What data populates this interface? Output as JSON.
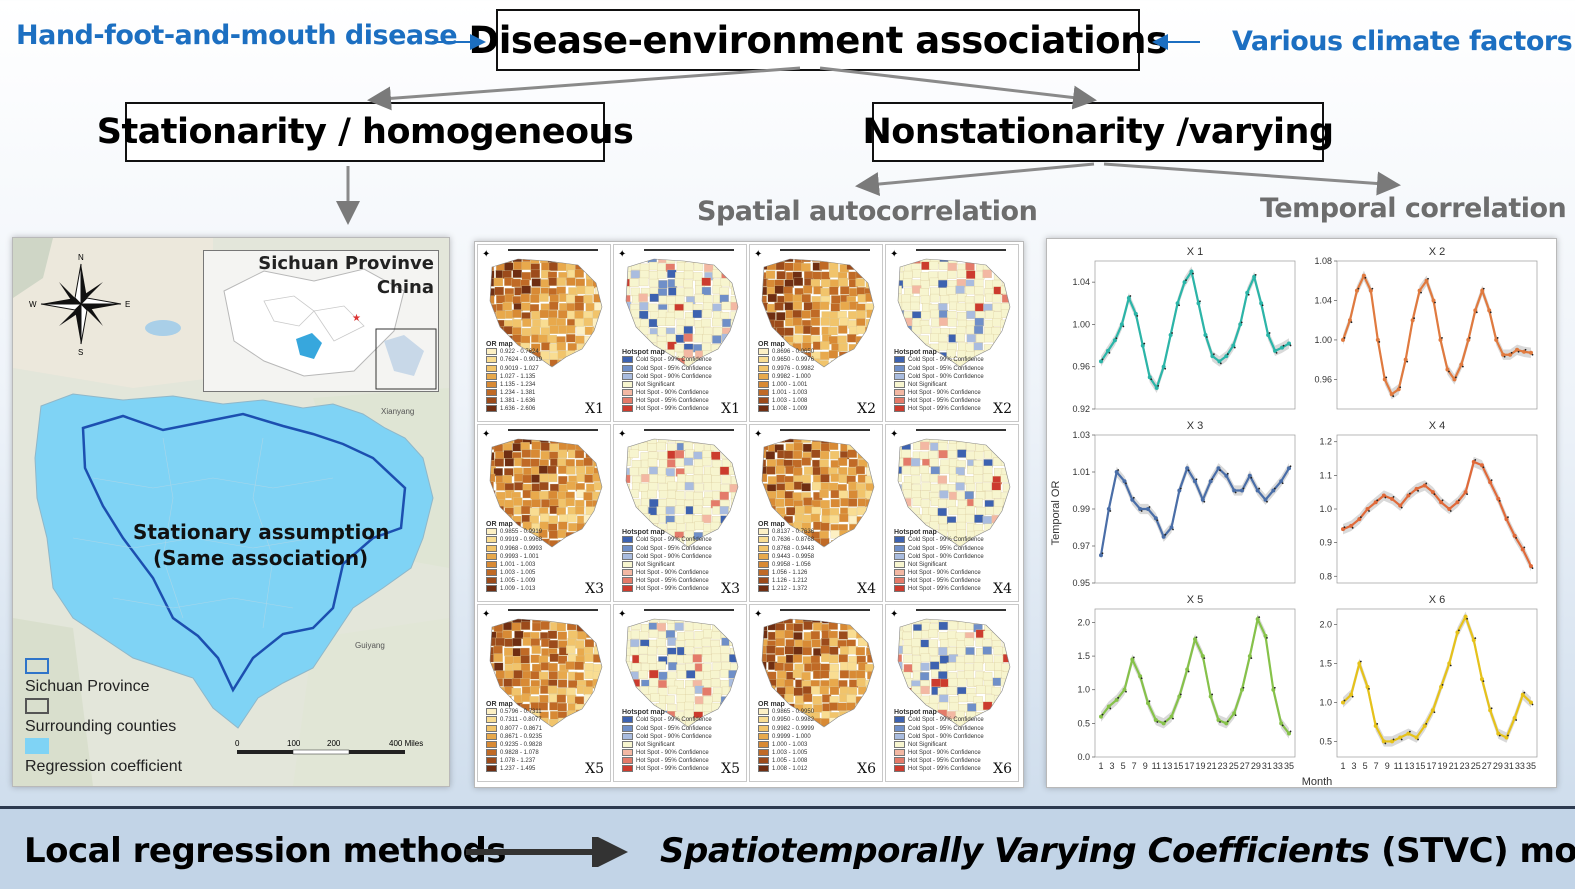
{
  "top": {
    "left_label": "Hand-foot-and-mouth disease",
    "center_title": "Disease-environment associations",
    "right_label": "Various climate factors"
  },
  "branches": {
    "left": "Stationarity / homogeneous",
    "right": "Nonstationarity /varying",
    "spatial": "Spatial autocorrelation",
    "temporal": "Temporal correlation"
  },
  "map_panel": {
    "inset_title_1": "Sichuan Provinve",
    "inset_title_2": "China",
    "compass": {
      "n": "N",
      "s": "S",
      "e": "E",
      "w": "W"
    },
    "assumption_1": "Stationary assumption",
    "assumption_2": "(Same association)",
    "city_1": "Xianyang",
    "city_2": "Guiyang",
    "legend": [
      "Sichuan Province",
      "Surrounding counties",
      "Regression coefficient"
    ],
    "scale": [
      "0",
      "100",
      "200",
      "400 Miles"
    ],
    "colors": {
      "province": "#2f74c9",
      "surrounding": "#555555",
      "coefficient": "#7fd3f5"
    }
  },
  "map_grid": {
    "or_title": "OR map",
    "hot_title": "Hotspot map",
    "hot_legend": [
      "Cold Spot - 99% Confidence",
      "Cold Spot - 95% Confidence",
      "Cold Spot - 90% Confidence",
      "Not Significant",
      "Hot Spot - 90% Confidence",
      "Hot Spot - 95% Confidence",
      "Hot Spot - 99% Confidence"
    ],
    "cells": [
      {
        "label": "X1",
        "or_legend": [
          "0.922 - 0.7624",
          "0.7624 - 0.9019",
          "0.9019 - 1.027",
          "1.027 - 1.135",
          "1.135 - 1.234",
          "1.234 - 1.381",
          "1.381 - 1.636",
          "1.636 - 2.606"
        ]
      },
      {
        "label": "X2",
        "or_legend": [
          "0.8696 - 0.9650",
          "0.9650 - 0.9976",
          "0.9976 - 0.9982",
          "0.9982 - 1.000",
          "1.000 - 1.001",
          "1.001 - 1.003",
          "1.003 - 1.008",
          "1.008 - 1.009"
        ]
      },
      {
        "label": "X3",
        "or_legend": [
          "0.9855 - 0.9919",
          "0.9919 - 0.9968",
          "0.9968 - 0.9993",
          "0.9993 - 1.001",
          "1.001 - 1.003",
          "1.003 - 1.005",
          "1.005 - 1.009",
          "1.009 - 1.013"
        ]
      },
      {
        "label": "X4",
        "or_legend": [
          "0.8137 - 0.7636",
          "0.7636 - 0.8768",
          "0.8768 - 0.9443",
          "0.9443 - 0.9958",
          "0.9958 - 1.056",
          "1.056 - 1.126",
          "1.126 - 1.212",
          "1.212 - 1.372"
        ]
      },
      {
        "label": "X5",
        "or_legend": [
          "0.5796 - 0.7311",
          "0.7311 - 0.8077",
          "0.8077 - 0.8671",
          "0.8671 - 0.9235",
          "0.9235 - 0.9828",
          "0.9828 - 1.078",
          "1.078 - 1.237",
          "1.237 - 1.495"
        ]
      },
      {
        "label": "X6",
        "or_legend": [
          "0.9865 - 0.9950",
          "0.9950 - 0.9982",
          "0.9982 - 0.9999",
          "0.9999 - 1.000",
          "1.000 - 1.003",
          "1.003 - 1.005",
          "1.005 - 1.008",
          "1.008 - 1.012"
        ]
      }
    ]
  },
  "chart_data": {
    "type": "line",
    "ylabel": "Temporal OR",
    "xlabel": "Month",
    "x_ticks": [
      "1",
      "3",
      "5",
      "7",
      "9",
      "11",
      "13",
      "15",
      "17",
      "19",
      "21",
      "23",
      "25",
      "27",
      "29",
      "31",
      "33",
      "35"
    ],
    "panels": [
      {
        "name": "X 1",
        "color": "#2bb5a8",
        "ylim": [
          0.92,
          1.06
        ],
        "y_ticks": [
          "0.92",
          "0.96",
          "1.00",
          "1.04"
        ],
        "y_tick_values": [
          0.92,
          0.96,
          1.0,
          1.04
        ],
        "values": [
          0.965,
          0.975,
          0.985,
          1.0,
          1.025,
          1.01,
          0.98,
          0.95,
          0.94,
          0.96,
          0.99,
          1.02,
          1.04,
          1.05,
          1.02,
          0.99,
          0.97,
          0.965,
          0.97,
          0.98,
          1.0,
          1.03,
          1.045,
          1.02,
          0.99,
          0.975,
          0.978,
          0.982
        ]
      },
      {
        "name": "X 2",
        "color": "#e07a3f",
        "ylim": [
          0.93,
          1.08
        ],
        "y_ticks": [
          "0.96",
          "1.00",
          "1.04",
          "1.08"
        ],
        "y_tick_values": [
          0.96,
          1.0,
          1.04,
          1.08
        ],
        "values": [
          1.0,
          1.02,
          1.05,
          1.065,
          1.05,
          1.0,
          0.96,
          0.945,
          0.95,
          0.98,
          1.02,
          1.05,
          1.06,
          1.04,
          1.0,
          0.97,
          0.96,
          0.975,
          1.0,
          1.03,
          1.05,
          1.03,
          1.0,
          0.985,
          0.985,
          0.99,
          0.988,
          0.987
        ]
      },
      {
        "name": "X 3",
        "color": "#4a6ea8",
        "ylim": [
          0.95,
          1.03
        ],
        "y_ticks": [
          "0.95",
          "0.97",
          "0.99",
          "1.01",
          "1.03"
        ],
        "y_tick_values": [
          0.95,
          0.97,
          0.99,
          1.01,
          1.03
        ],
        "values": [
          0.965,
          0.99,
          1.01,
          1.005,
          0.995,
          0.99,
          0.99,
          0.985,
          0.975,
          0.98,
          1.0,
          1.012,
          1.005,
          0.995,
          1.005,
          1.012,
          1.008,
          1.0,
          1.0,
          1.008,
          1.0,
          0.995,
          1.0,
          1.005,
          1.012
        ]
      },
      {
        "name": "X 4",
        "color": "#e06a3a",
        "ylim": [
          0.78,
          1.22
        ],
        "y_ticks": [
          "0.8",
          "0.9",
          "1.0",
          "1.1",
          "1.2"
        ],
        "y_tick_values": [
          0.8,
          0.9,
          1.0,
          1.1,
          1.2
        ],
        "values": [
          0.94,
          0.95,
          0.97,
          1.0,
          1.02,
          1.04,
          1.03,
          1.01,
          1.04,
          1.06,
          1.07,
          1.05,
          1.02,
          1.0,
          1.02,
          1.05,
          1.14,
          1.13,
          1.08,
          1.03,
          0.97,
          0.92,
          0.88,
          0.83
        ]
      },
      {
        "name": "X 5",
        "color": "#86c24a",
        "ylim": [
          0.0,
          2.2
        ],
        "y_ticks": [
          "0.0",
          "0.5",
          "1.0",
          "1.5",
          "2.0"
        ],
        "y_tick_values": [
          0.0,
          0.5,
          1.0,
          1.5,
          2.0
        ],
        "values": [
          0.6,
          0.75,
          0.85,
          1.0,
          1.45,
          1.2,
          0.8,
          0.55,
          0.5,
          0.6,
          0.9,
          1.3,
          1.75,
          1.5,
          0.9,
          0.55,
          0.5,
          0.65,
          1.0,
          1.5,
          2.05,
          1.8,
          1.0,
          0.5,
          0.35
        ]
      },
      {
        "name": "X 6",
        "color": "#e6c21a",
        "ylim": [
          0.3,
          2.2
        ],
        "y_ticks": [
          "0.5",
          "1.0",
          "1.5",
          "2.0"
        ],
        "y_tick_values": [
          0.5,
          1.0,
          1.5,
          2.0
        ],
        "values": [
          1.0,
          1.1,
          1.5,
          1.2,
          0.7,
          0.5,
          0.5,
          0.55,
          0.6,
          0.55,
          0.7,
          0.9,
          1.2,
          1.5,
          1.9,
          2.1,
          1.8,
          1.3,
          0.9,
          0.6,
          0.55,
          0.8,
          1.1,
          1.0
        ]
      }
    ]
  },
  "footer": {
    "left": "Local regression methods",
    "right_italic": "Spatiotemporally Varying Coefficients",
    "right_rest": " (STVC) model"
  }
}
